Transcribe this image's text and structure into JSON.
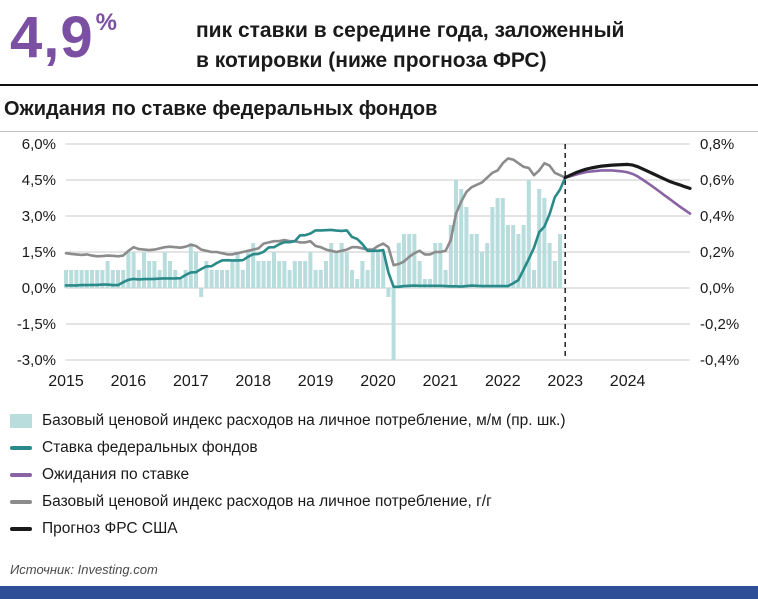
{
  "header": {
    "big_number": "4,9",
    "percent_sign": "%",
    "subtitle_line1": "пик ставки в середине года, заложенный",
    "subtitle_line2": "в котировки (ниже прогноза ФРС)"
  },
  "chart": {
    "title": "Ожидания по ставке федеральных фондов"
  },
  "legend": {
    "items": [
      {
        "label": "Базовый ценовой индекс расходов на личное потребление, м/м (пр. шк.)",
        "swatch": "bar"
      },
      {
        "label": "Ставка федеральных фондов",
        "swatch": "line"
      },
      {
        "label": "Ожидания по ставке",
        "swatch": "line"
      },
      {
        "label": "Базовый ценовой индекс расходов на личное потребление, г/г",
        "swatch": "line"
      },
      {
        "label": "Прогноз ФРС США",
        "swatch": "line"
      }
    ]
  },
  "source": "Источник: Investing.com",
  "colors": {
    "accent_purple": "#7b4fa2",
    "footer_bar": "#2e4f97",
    "grid": "#c9c9c9",
    "dashed_line": "#222222"
  },
  "chart_data": {
    "type": "bar+line",
    "title": "Ожидания по ставке федеральных фондов",
    "x_labels": [
      "2015",
      "2016",
      "2017",
      "2018",
      "2019",
      "2020",
      "2021",
      "2022",
      "2023",
      "2024"
    ],
    "months_total": 121,
    "dashed_line_month": 96,
    "right_to_left_factor": 7.5,
    "left_axis": {
      "labels": [
        "6,0%",
        "4,5%",
        "3,0%",
        "1,5%",
        "0,0%",
        "-1,5%",
        "-3,0%"
      ],
      "values": [
        6,
        4.5,
        3,
        1.5,
        0,
        -1.5,
        -3
      ],
      "min": -3,
      "max": 6
    },
    "right_axis": {
      "labels": [
        "0,8%",
        "0,6%",
        "0,4%",
        "0,2%",
        "0,0%",
        "-0,2%",
        "-0,4%"
      ],
      "min": -0.4,
      "max": 0.8
    },
    "series": [
      {
        "name": "Базовый ценовой индекс расходов на личное потребление, м/м (пр. шк.)",
        "type": "bar",
        "axis": "right",
        "color": "#b9dcdc",
        "start_month": 0,
        "values": [
          0.1,
          0.1,
          0.1,
          0.1,
          0.1,
          0.1,
          0.1,
          0.1,
          0.15,
          0.1,
          0.1,
          0.1,
          0.2,
          0.2,
          0.1,
          0.2,
          0.15,
          0.15,
          0.1,
          0.2,
          0.15,
          0.1,
          0.05,
          0.1,
          0.25,
          0.2,
          -0.05,
          0.15,
          0.1,
          0.1,
          0.1,
          0.1,
          0.15,
          0.2,
          0.1,
          0.2,
          0.25,
          0.15,
          0.15,
          0.15,
          0.2,
          0.15,
          0.15,
          0.1,
          0.15,
          0.15,
          0.15,
          0.2,
          0.1,
          0.1,
          0.15,
          0.25,
          0.2,
          0.25,
          0.2,
          0.1,
          0.05,
          0.15,
          0.1,
          0.2,
          0.2,
          0.2,
          -0.05,
          -0.4,
          0.25,
          0.3,
          0.3,
          0.3,
          0.15,
          0.05,
          0.05,
          0.25,
          0.25,
          0.1,
          0.35,
          0.6,
          0.55,
          0.45,
          0.3,
          0.3,
          0.2,
          0.25,
          0.45,
          0.5,
          0.5,
          0.35,
          0.35,
          0.3,
          0.35,
          0.6,
          0.1,
          0.55,
          0.5,
          0.25,
          0.15,
          0.3
        ]
      },
      {
        "name": "Ставка федеральных фондов",
        "type": "line",
        "axis": "left",
        "color": "#2a8a8a",
        "start_month": 0,
        "values": [
          0.11,
          0.11,
          0.11,
          0.12,
          0.12,
          0.13,
          0.13,
          0.14,
          0.14,
          0.12,
          0.12,
          0.24,
          0.34,
          0.38,
          0.36,
          0.37,
          0.37,
          0.38,
          0.39,
          0.4,
          0.4,
          0.4,
          0.41,
          0.54,
          0.65,
          0.66,
          0.79,
          0.9,
          0.91,
          1.04,
          1.15,
          1.16,
          1.15,
          1.15,
          1.16,
          1.3,
          1.41,
          1.42,
          1.51,
          1.69,
          1.7,
          1.82,
          1.91,
          1.91,
          1.95,
          2.19,
          2.2,
          2.27,
          2.4,
          2.4,
          2.41,
          2.42,
          2.39,
          2.38,
          2.4,
          2.13,
          2.04,
          1.83,
          1.55,
          1.55,
          1.55,
          1.58,
          0.65,
          0.05,
          0.05,
          0.08,
          0.09,
          0.1,
          0.09,
          0.09,
          0.09,
          0.09,
          0.09,
          0.08,
          0.07,
          0.07,
          0.06,
          0.08,
          0.1,
          0.09,
          0.08,
          0.08,
          0.08,
          0.08,
          0.08,
          0.08,
          0.2,
          0.33,
          0.77,
          1.21,
          1.68,
          2.33,
          2.56,
          3.08,
          3.78,
          4.1,
          4.6
        ]
      },
      {
        "name": "Ожидания по ставке",
        "type": "line",
        "axis": "left",
        "color": "#8a63a5",
        "start_month": 96,
        "values": [
          4.6,
          4.66,
          4.72,
          4.78,
          4.83,
          4.86,
          4.88,
          4.9,
          4.9,
          4.9,
          4.88,
          4.86,
          4.82,
          4.75,
          4.64,
          4.5,
          4.35,
          4.2,
          4.04,
          3.88,
          3.72,
          3.56,
          3.4,
          3.25,
          3.1
        ]
      },
      {
        "name": "Базовый ценовой индекс расходов на личное потребление, г/г",
        "type": "line",
        "axis": "left",
        "color": "#8c8c8c",
        "start_month": 0,
        "values": [
          1.45,
          1.42,
          1.4,
          1.38,
          1.4,
          1.35,
          1.32,
          1.33,
          1.35,
          1.34,
          1.32,
          1.35,
          1.55,
          1.7,
          1.62,
          1.6,
          1.58,
          1.6,
          1.65,
          1.7,
          1.72,
          1.7,
          1.68,
          1.72,
          1.8,
          1.75,
          1.6,
          1.55,
          1.5,
          1.5,
          1.45,
          1.4,
          1.4,
          1.45,
          1.5,
          1.55,
          1.6,
          1.65,
          1.85,
          1.9,
          1.95,
          1.95,
          2.0,
          1.95,
          1.95,
          1.9,
          1.9,
          1.95,
          1.75,
          1.7,
          1.6,
          1.55,
          1.5,
          1.55,
          1.6,
          1.7,
          1.7,
          1.65,
          1.6,
          1.6,
          1.75,
          1.85,
          1.7,
          0.95,
          1.0,
          1.1,
          1.3,
          1.45,
          1.55,
          1.4,
          1.4,
          1.5,
          1.5,
          1.55,
          2.0,
          3.1,
          3.6,
          4.0,
          4.2,
          4.3,
          4.4,
          4.6,
          4.8,
          4.9,
          5.2,
          5.4,
          5.35,
          5.2,
          5.05,
          5.0,
          4.7,
          4.9,
          5.2,
          5.1,
          4.8,
          4.7,
          4.6
        ]
      },
      {
        "name": "Прогноз ФРС США",
        "type": "line",
        "axis": "left",
        "color": "#1a1a1a",
        "start_month": 96,
        "values": [
          4.6,
          4.7,
          4.8,
          4.88,
          4.95,
          5.0,
          5.04,
          5.08,
          5.1,
          5.12,
          5.13,
          5.14,
          5.15,
          5.12,
          5.05,
          4.95,
          4.85,
          4.75,
          4.65,
          4.55,
          4.45,
          4.37,
          4.3,
          4.22,
          4.15
        ]
      }
    ]
  }
}
